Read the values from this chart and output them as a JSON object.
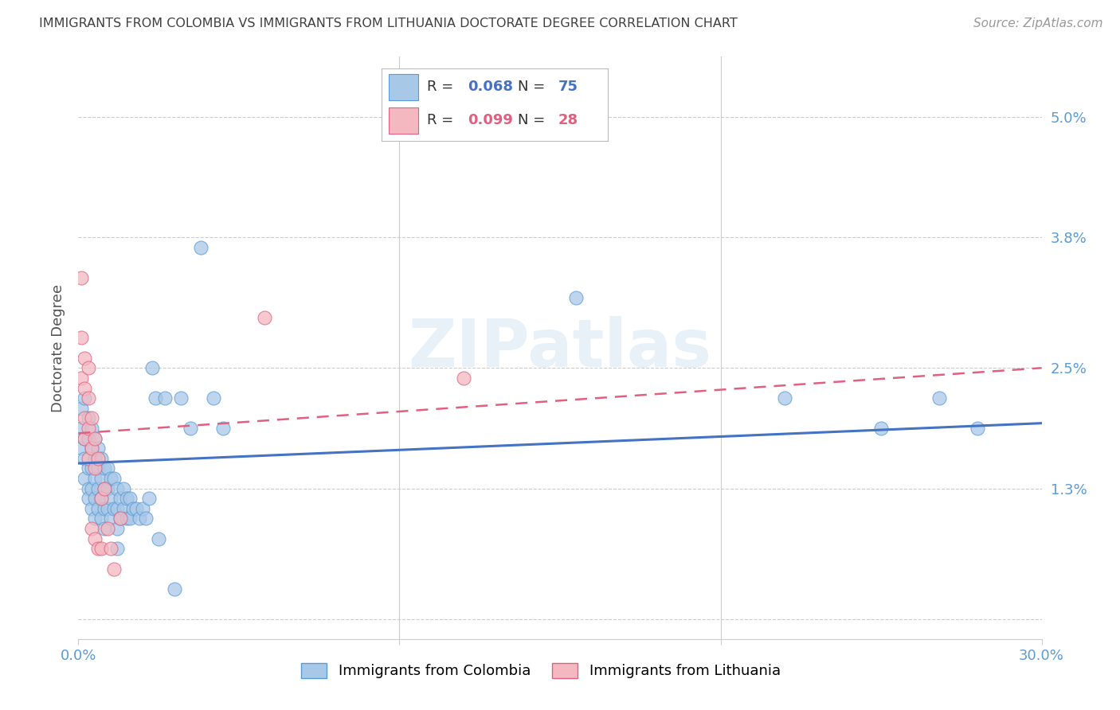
{
  "title": "IMMIGRANTS FROM COLOMBIA VS IMMIGRANTS FROM LITHUANIA DOCTORATE DEGREE CORRELATION CHART",
  "source": "Source: ZipAtlas.com",
  "ylabel": "Doctorate Degree",
  "xlim": [
    0.0,
    0.3
  ],
  "ylim": [
    -0.002,
    0.056
  ],
  "colombia_color": "#a8c8e8",
  "colombia_edge": "#5b9bd5",
  "lithuania_color": "#f4b8c1",
  "lithuania_edge": "#e06080",
  "colombia_line_color": "#4472c4",
  "lithuania_line_color": "#e06080",
  "colombia_R": 0.068,
  "colombia_N": 75,
  "lithuania_R": 0.099,
  "lithuania_N": 28,
  "colombia_scatter_x": [
    0.001,
    0.001,
    0.001,
    0.002,
    0.002,
    0.002,
    0.002,
    0.003,
    0.003,
    0.003,
    0.003,
    0.003,
    0.004,
    0.004,
    0.004,
    0.004,
    0.004,
    0.005,
    0.005,
    0.005,
    0.005,
    0.005,
    0.006,
    0.006,
    0.006,
    0.006,
    0.007,
    0.007,
    0.007,
    0.007,
    0.008,
    0.008,
    0.008,
    0.008,
    0.009,
    0.009,
    0.009,
    0.01,
    0.01,
    0.01,
    0.011,
    0.011,
    0.012,
    0.012,
    0.012,
    0.012,
    0.013,
    0.013,
    0.014,
    0.014,
    0.015,
    0.015,
    0.016,
    0.016,
    0.017,
    0.018,
    0.019,
    0.02,
    0.021,
    0.022,
    0.023,
    0.024,
    0.025,
    0.027,
    0.03,
    0.032,
    0.035,
    0.038,
    0.042,
    0.045,
    0.155,
    0.22,
    0.25,
    0.268,
    0.28
  ],
  "colombia_scatter_y": [
    0.021,
    0.019,
    0.017,
    0.022,
    0.018,
    0.016,
    0.014,
    0.02,
    0.018,
    0.015,
    0.013,
    0.012,
    0.019,
    0.017,
    0.015,
    0.013,
    0.011,
    0.018,
    0.016,
    0.014,
    0.012,
    0.01,
    0.017,
    0.015,
    0.013,
    0.011,
    0.016,
    0.014,
    0.012,
    0.01,
    0.015,
    0.013,
    0.011,
    0.009,
    0.015,
    0.013,
    0.011,
    0.014,
    0.012,
    0.01,
    0.014,
    0.011,
    0.013,
    0.011,
    0.009,
    0.007,
    0.012,
    0.01,
    0.013,
    0.011,
    0.012,
    0.01,
    0.012,
    0.01,
    0.011,
    0.011,
    0.01,
    0.011,
    0.01,
    0.012,
    0.025,
    0.022,
    0.008,
    0.022,
    0.003,
    0.022,
    0.019,
    0.037,
    0.022,
    0.019,
    0.032,
    0.022,
    0.019,
    0.022,
    0.019
  ],
  "lithuania_scatter_x": [
    0.001,
    0.001,
    0.001,
    0.002,
    0.002,
    0.002,
    0.002,
    0.003,
    0.003,
    0.003,
    0.003,
    0.004,
    0.004,
    0.004,
    0.005,
    0.005,
    0.005,
    0.006,
    0.006,
    0.007,
    0.007,
    0.008,
    0.009,
    0.01,
    0.011,
    0.013,
    0.058,
    0.12
  ],
  "lithuania_scatter_y": [
    0.034,
    0.028,
    0.024,
    0.026,
    0.023,
    0.02,
    0.018,
    0.025,
    0.022,
    0.019,
    0.016,
    0.02,
    0.017,
    0.009,
    0.018,
    0.015,
    0.008,
    0.016,
    0.007,
    0.012,
    0.007,
    0.013,
    0.009,
    0.007,
    0.005,
    0.01,
    0.03,
    0.024
  ],
  "colombia_trend_x": [
    0.0,
    0.3
  ],
  "colombia_trend_y": [
    0.0155,
    0.0195
  ],
  "lithuania_trend_x": [
    0.0,
    0.3
  ],
  "lithuania_trend_y": [
    0.0185,
    0.025
  ],
  "yticks": [
    0.0,
    0.013,
    0.025,
    0.038,
    0.05
  ],
  "ytick_labels": [
    "",
    "1.3%",
    "2.5%",
    "3.8%",
    "5.0%"
  ],
  "background_color": "#ffffff",
  "grid_color": "#cccccc",
  "title_color": "#404040",
  "tick_color": "#5b9bd5",
  "watermark": "ZIPatlas",
  "legend_colombia_label": "R = 0.068   N = 75",
  "legend_lithuania_label": "R = 0.099   N = 28",
  "bottom_legend_colombia": "Immigrants from Colombia",
  "bottom_legend_lithuania": "Immigrants from Lithuania"
}
